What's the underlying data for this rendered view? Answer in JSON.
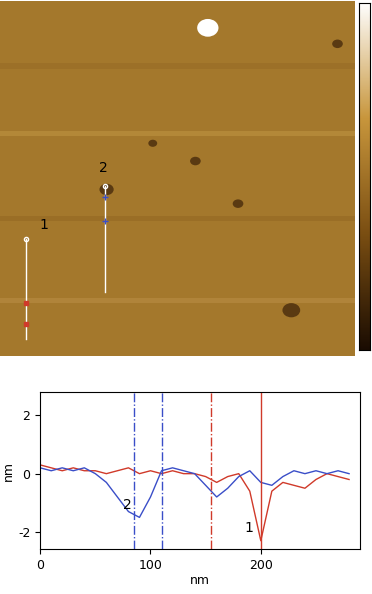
{
  "image": {
    "profile_labels": [
      "1",
      "2"
    ]
  },
  "chart_data": {
    "type": "line",
    "xlabel": "nm",
    "ylabel": "nm",
    "x": [
      0,
      10,
      20,
      30,
      40,
      50,
      60,
      70,
      80,
      90,
      100,
      110,
      120,
      130,
      140,
      150,
      160,
      170,
      180,
      190,
      200,
      210,
      220,
      230,
      240,
      250,
      260,
      270,
      280
    ],
    "series": [
      {
        "color": "#d03a2a",
        "label": "1",
        "values": [
          0.3,
          0.2,
          0.1,
          0.2,
          0.1,
          0.1,
          0.0,
          0.1,
          0.2,
          0.0,
          0.1,
          0.0,
          0.1,
          0.0,
          0.0,
          -0.1,
          -0.3,
          -0.1,
          0.0,
          -0.6,
          -2.3,
          -0.6,
          -0.3,
          -0.4,
          -0.5,
          -0.2,
          0.0,
          -0.1,
          -0.2
        ]
      },
      {
        "color": "#3a4ec8",
        "label": "2",
        "values": [
          0.2,
          0.1,
          0.2,
          0.1,
          0.2,
          0.0,
          -0.3,
          -0.8,
          -1.3,
          -1.5,
          -0.8,
          0.1,
          0.2,
          0.1,
          0.0,
          -0.4,
          -0.8,
          -0.5,
          -0.1,
          0.1,
          -0.3,
          -0.4,
          -0.1,
          0.1,
          0.0,
          0.1,
          0.0,
          0.1,
          0.0
        ]
      }
    ],
    "cursor_lines": [
      {
        "x": 85,
        "color": "#3a4ec8",
        "line_style": "dashdot"
      },
      {
        "x": 110,
        "color": "#3a4ec8",
        "line_style": "dashdot"
      },
      {
        "x": 155,
        "color": "#d03a2a",
        "line_style": "dashdot"
      },
      {
        "x": 200,
        "color": "#d03a2a",
        "line_style": "solid"
      }
    ],
    "xlim": [
      0,
      290
    ],
    "ylim": [
      -2.6,
      2.8
    ],
    "xticks": [
      0,
      100,
      200
    ],
    "yticks": [
      -2,
      0,
      2
    ]
  }
}
